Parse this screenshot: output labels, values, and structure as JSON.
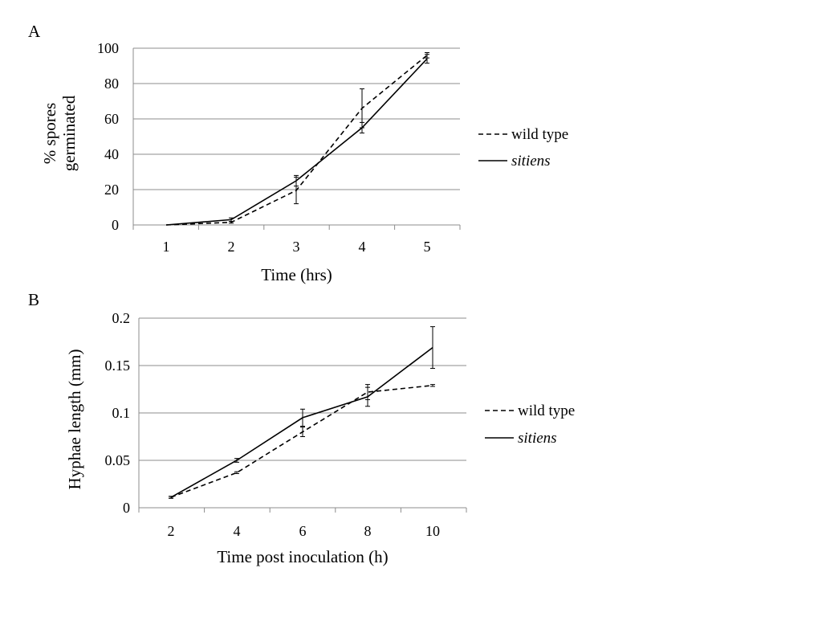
{
  "chart_data": [
    {
      "type": "line",
      "panel_label": "A",
      "x_categories": [
        "1",
        "2",
        "3",
        "4",
        "5"
      ],
      "x": [
        1,
        2,
        3,
        4,
        5
      ],
      "xlabel": "Time (hrs)",
      "ylabel_lines": [
        "% spores",
        "germinated"
      ],
      "ylim": [
        0,
        100
      ],
      "y_ticks": [
        0,
        20,
        40,
        60,
        80,
        100
      ],
      "y_tick_labels": [
        "0",
        "20",
        "40",
        "60",
        "80",
        "100"
      ],
      "grid": true,
      "legend_position": "right",
      "series": [
        {
          "name": "wild type",
          "italic": false,
          "line_style": "dashed",
          "values": [
            0,
            1.5,
            19.5,
            66,
            96
          ],
          "errors": [
            0,
            0.5,
            7.5,
            11,
            1.5
          ]
        },
        {
          "name": "sitiens",
          "italic": true,
          "line_style": "solid",
          "values": [
            0,
            3,
            25,
            55,
            94
          ],
          "errors": [
            0,
            1,
            3,
            3,
            2.5
          ]
        }
      ]
    },
    {
      "type": "line",
      "panel_label": "B",
      "x_categories": [
        "2",
        "4",
        "6",
        "8",
        "10"
      ],
      "x": [
        2,
        4,
        6,
        8,
        10
      ],
      "xlabel": "Time post inoculation (h)",
      "ylabel": "Hyphae length (mm)",
      "ylim": [
        0,
        0.2
      ],
      "y_ticks": [
        0,
        0.05,
        0.1,
        0.15,
        0.2
      ],
      "y_tick_labels": [
        "0",
        "0.05",
        "0.1",
        "0.15",
        "0.2"
      ],
      "grid": true,
      "legend_position": "right",
      "series": [
        {
          "name": "wild type",
          "italic": false,
          "line_style": "dashed",
          "values": [
            0.011,
            0.037,
            0.08,
            0.122,
            0.129
          ],
          "errors": [
            0.001,
            0.001,
            0.005,
            0.008,
            0.001
          ]
        },
        {
          "name": "sitiens",
          "italic": true,
          "line_style": "solid",
          "values": [
            0.011,
            0.05,
            0.095,
            0.117,
            0.169
          ],
          "errors": [
            0.001,
            0.002,
            0.009,
            0.01,
            0.022
          ]
        }
      ]
    }
  ]
}
